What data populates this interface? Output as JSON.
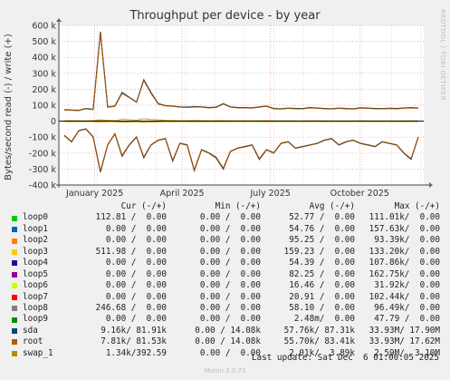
{
  "chart_data": {
    "type": "line",
    "title": "Throughput per device - by year",
    "ylabel": "Bytes/second read (-) / write (+)",
    "ylim": [
      -400000,
      600000
    ],
    "yticks": [
      {
        "value": 600000,
        "label": "600 k"
      },
      {
        "value": 500000,
        "label": "500 k"
      },
      {
        "value": 400000,
        "label": "400 k"
      },
      {
        "value": 300000,
        "label": "300 k"
      },
      {
        "value": 200000,
        "label": "200 k"
      },
      {
        "value": 100000,
        "label": "100 k"
      },
      {
        "value": 0,
        "label": "0"
      },
      {
        "value": -100000,
        "label": "-100 k"
      },
      {
        "value": -200000,
        "label": "-200 k"
      },
      {
        "value": -300000,
        "label": "-300 k"
      },
      {
        "value": -400000,
        "label": "-400 k"
      }
    ],
    "xlim": [
      "2024-11-25",
      "2025-12-06"
    ],
    "xticks": [
      {
        "date": "2025-01-01",
        "label": "January 2025"
      },
      {
        "date": "2025-04-01",
        "label": "April 2025"
      },
      {
        "date": "2025-07-01",
        "label": "July 2025"
      },
      {
        "date": "2025-10-01",
        "label": "October 2025"
      }
    ],
    "grid": true,
    "series": [
      {
        "name": "sda",
        "color": "#00455c",
        "values_write": [
          72000,
          70000,
          68000,
          80000,
          75000,
          560000,
          90000,
          95000,
          180000,
          150000,
          120000,
          260000,
          180000,
          110000,
          98000,
          95000,
          90000,
          88000,
          92000,
          90000,
          85000,
          88000,
          110000,
          90000,
          85000,
          86000,
          84000,
          90000,
          95000,
          80000,
          78000,
          82000,
          80000,
          79000,
          85000,
          83000,
          80000,
          78000,
          82000,
          80000,
          78000,
          84000,
          82000,
          80000,
          79000,
          81000,
          80000,
          83000,
          85000,
          82000
        ],
        "values_read": [
          -90000,
          -130000,
          -60000,
          -50000,
          -100000,
          -320000,
          -150000,
          -80000,
          -220000,
          -150000,
          -100000,
          -230000,
          -150000,
          -120000,
          -110000,
          -250000,
          -140000,
          -150000,
          -310000,
          -180000,
          -200000,
          -230000,
          -300000,
          -190000,
          -170000,
          -160000,
          -150000,
          -240000,
          -180000,
          -200000,
          -140000,
          -130000,
          -170000,
          -160000,
          -150000,
          -140000,
          -120000,
          -110000,
          -150000,
          -130000,
          -120000,
          -140000,
          -150000,
          -160000,
          -130000,
          -140000,
          -150000,
          -200000,
          -240000,
          -100000
        ]
      },
      {
        "name": "root",
        "color": "#a04a00",
        "values_write": [
          70000,
          68000,
          66000,
          78000,
          73000,
          555000,
          88000,
          93000,
          175000,
          148000,
          118000,
          255000,
          175000,
          108000,
          96000,
          93000,
          88000,
          86000,
          90000,
          88000,
          83000,
          86000,
          108000,
          88000,
          83000,
          84000,
          82000,
          88000,
          93000,
          78000,
          76000,
          80000,
          78000,
          77000,
          83000,
          81000,
          78000,
          76000,
          80000,
          78000,
          76000,
          82000,
          80000,
          78000,
          77000,
          79000,
          78000,
          81000,
          83000,
          80000
        ],
        "values_read": [
          -88000,
          -128000,
          -58000,
          -48000,
          -98000,
          -315000,
          -148000,
          -78000,
          -215000,
          -148000,
          -98000,
          -225000,
          -148000,
          -118000,
          -108000,
          -245000,
          -138000,
          -148000,
          -305000,
          -178000,
          -198000,
          -225000,
          -295000,
          -188000,
          -168000,
          -158000,
          -148000,
          -235000,
          -178000,
          -198000,
          -138000,
          -128000,
          -168000,
          -158000,
          -148000,
          -138000,
          -118000,
          -108000,
          -148000,
          -128000,
          -118000,
          -138000,
          -148000,
          -158000,
          -128000,
          -138000,
          -148000,
          -198000,
          -235000,
          -98000
        ]
      },
      {
        "name": "swap_1",
        "color": "#c8a000",
        "values_write": [
          2000,
          3000,
          2500,
          1500,
          4000,
          8000,
          5000,
          3000,
          12000,
          9000,
          6000,
          15000,
          10000,
          8000,
          5000,
          4000,
          3000,
          3500,
          4000,
          3000,
          2500,
          3000,
          3500,
          2500,
          2000,
          2500,
          2000,
          2500,
          3000,
          2000,
          1800,
          2000,
          1800,
          1700,
          2200,
          2000,
          1800,
          1700,
          1900,
          1800,
          1700,
          2000,
          1900,
          1800,
          1700,
          1800,
          1700,
          1900,
          2000,
          1800
        ],
        "values_read": [
          -1000,
          -1500,
          -1000,
          -800,
          -2000,
          -4000,
          -2500,
          -1500,
          -6000,
          -4500,
          -3000,
          -7000,
          -5000,
          -4000,
          -2500,
          -2000,
          -1500,
          -1800,
          -2000,
          -1500,
          -1200,
          -1500,
          -1800,
          -1200,
          -1000,
          -1200,
          -1000,
          -1200,
          -1500,
          -1000,
          -900,
          -1000,
          -900,
          -850,
          -1100,
          -1000,
          -900,
          -850,
          -950,
          -900,
          -850,
          -1000,
          -950,
          -900,
          -850,
          -900,
          -850,
          -950,
          -1000,
          -900
        ]
      }
    ],
    "legend_header": {
      "cur": "Cur (-/+)",
      "min": "Min (-/+)",
      "avg": "Avg (-/+)",
      "max": "Max (-/+)"
    },
    "legend": [
      {
        "name": "loop0",
        "color": "#00cc00",
        "cur": "112.81 /  0.00",
        "min": "0.00 /  0.00",
        "avg": "52.77 /  0.00",
        "max": "111.01k/  0.00"
      },
      {
        "name": "loop1",
        "color": "#0066b3",
        "cur": "0.00 /  0.00",
        "min": "0.00 /  0.00",
        "avg": "54.76 /  0.00",
        "max": "157.63k/  0.00"
      },
      {
        "name": "loop2",
        "color": "#ff8000",
        "cur": "0.00 /  0.00",
        "min": "0.00 /  0.00",
        "avg": "95.25 /  0.00",
        "max": "93.39k/  0.00"
      },
      {
        "name": "loop3",
        "color": "#ffcc00",
        "cur": "511.98 /  0.00",
        "min": "0.00 /  0.00",
        "avg": "159.23 /  0.00",
        "max": "133.20k/  0.00"
      },
      {
        "name": "loop4",
        "color": "#330099",
        "cur": "0.00 /  0.00",
        "min": "0.00 /  0.00",
        "avg": "54.39 /  0.00",
        "max": "107.86k/  0.00"
      },
      {
        "name": "loop5",
        "color": "#990099",
        "cur": "0.00 /  0.00",
        "min": "0.00 /  0.00",
        "avg": "82.25 /  0.00",
        "max": "162.75k/  0.00"
      },
      {
        "name": "loop6",
        "color": "#ccff00",
        "cur": "0.00 /  0.00",
        "min": "0.00 /  0.00",
        "avg": "16.46 /  0.00",
        "max": "31.92k/  0.00"
      },
      {
        "name": "loop7",
        "color": "#ff0000",
        "cur": "0.00 /  0.00",
        "min": "0.00 /  0.00",
        "avg": "20.91 /  0.00",
        "max": "102.44k/  0.00"
      },
      {
        "name": "loop8",
        "color": "#808080",
        "cur": "246.68 /  0.00",
        "min": "0.00 /  0.00",
        "avg": "58.10 /  0.00",
        "max": "96.49k/  0.00"
      },
      {
        "name": "loop9",
        "color": "#008f00",
        "cur": "0.00 /  0.00",
        "min": "0.00 /  0.00",
        "avg": "2.48m/  0.00",
        "max": "47.79 /  0.00"
      },
      {
        "name": "sda",
        "color": "#00487d",
        "cur": "9.16k/ 81.91k",
        "min": "0.00 / 14.08k",
        "avg": "57.76k/ 87.31k",
        "max": "33.93M/ 17.90M"
      },
      {
        "name": "root",
        "color": "#b35a00",
        "cur": "7.81k/ 81.53k",
        "min": "0.00 / 14.08k",
        "avg": "55.70k/ 83.41k",
        "max": "33.93M/ 17.62M"
      },
      {
        "name": "swap_1",
        "color": "#b38f00",
        "cur": "1.34k/392.59",
        "min": "0.00 /  0.00",
        "avg": "2.01k/  3.89k",
        "max": "2.59M/  3.10M"
      }
    ]
  },
  "watermark": "RRDTOOL / TOBI OETIKER",
  "last_update": "Last update: Sat Dec  6 01:00:05 2025",
  "munin_version": "Munin 2.0.73"
}
